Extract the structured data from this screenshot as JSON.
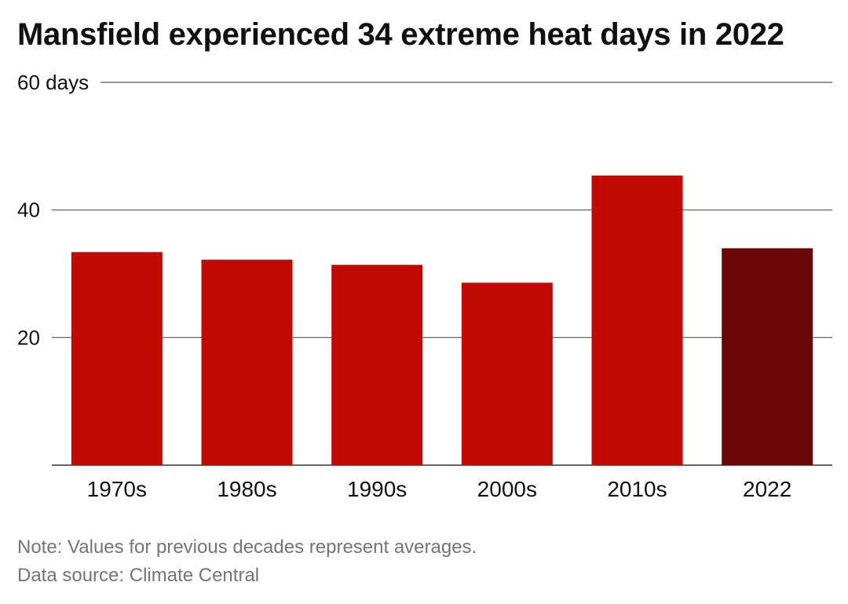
{
  "chart_data": {
    "type": "bar",
    "title": "Mansfield experienced 34 extreme heat days in 2022",
    "categories": [
      "1970s",
      "1980s",
      "1990s",
      "2000s",
      "2010s",
      "2022"
    ],
    "values": [
      33.4,
      32.2,
      31.4,
      28.6,
      45.4,
      34
    ],
    "highlight_index": 5,
    "ylim": [
      0,
      60
    ],
    "yticks": [
      0,
      20,
      40,
      60
    ],
    "ytick_labels": [
      "",
      "20",
      "40",
      "60 days"
    ],
    "grid": true,
    "legend": "none",
    "colors": {
      "bar": "#c10a02",
      "highlight": "#6a0809",
      "grid": "#555555"
    }
  },
  "footer": {
    "note": "Note: Values for previous decades represent averages.",
    "source": "Data source: Climate Central"
  }
}
